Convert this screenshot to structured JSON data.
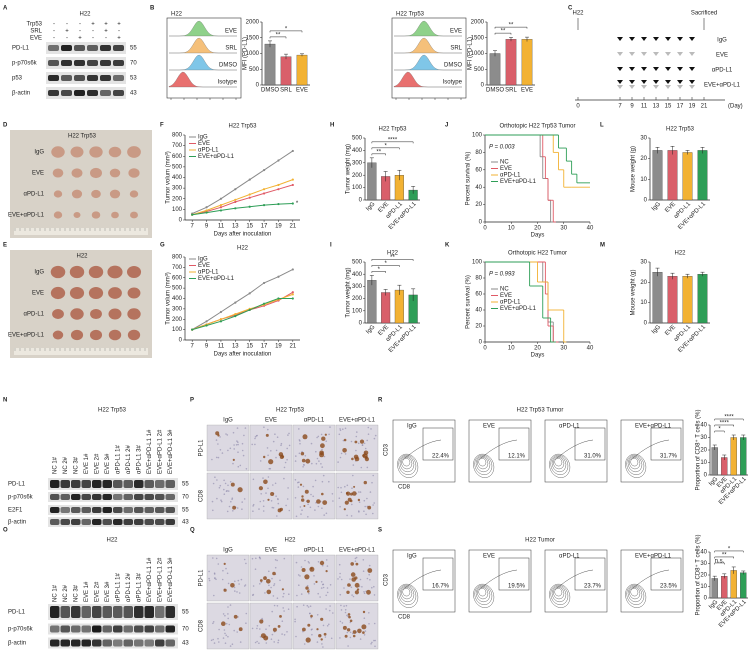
{
  "panel_labels": [
    "A",
    "B",
    "C",
    "D",
    "E",
    "F",
    "G",
    "H",
    "I",
    "J",
    "K",
    "L",
    "M",
    "N",
    "O",
    "P",
    "Q",
    "R",
    "S"
  ],
  "blots": [
    {
      "title": "H22",
      "conditions": [
        {
          "name": "Trp53",
          "signs": [
            "-",
            "-",
            "-",
            "+",
            "+",
            "+"
          ]
        },
        {
          "name": "SRL",
          "signs": [
            "-",
            "+",
            "-",
            "-",
            "+",
            "-"
          ]
        },
        {
          "name": "EVE",
          "signs": [
            "-",
            "-",
            "+",
            "-",
            "-",
            "+"
          ]
        }
      ],
      "bands": [
        {
          "name": "PD-L1",
          "kda": 55
        },
        {
          "name": "p-p70s6k",
          "kda": 70
        },
        {
          "name": "p53",
          "kda": 53
        },
        {
          "name": "β-actin",
          "kda": 43
        }
      ]
    },
    {
      "title": "H22 Trp53",
      "lanes": [
        "NC 1#",
        "NC 2#",
        "NC 3#",
        "EVE 1#",
        "EVE 2#",
        "EVE 3#",
        "αPD-L1 1#",
        "αPD-L1 2#",
        "αPD-L1 3#",
        "EVE+αPD-L1 1#",
        "EVE+αPD-L1 2#",
        "EVE+αPD-L1 3#"
      ],
      "bands": [
        {
          "name": "PD-L1",
          "kda": 55
        },
        {
          "name": "p-p70s6k",
          "kda": 70
        },
        {
          "name": "E2F1",
          "kda": 55
        },
        {
          "name": "β-actin",
          "kda": 43
        }
      ]
    },
    {
      "title": "H22",
      "lanes": [
        "NC 1#",
        "NC 2#",
        "NC 3#",
        "EVE 1#",
        "EVE 2#",
        "EVE 3#",
        "αPD-L1 1#",
        "αPD-L1 2#",
        "αPD-L1 3#",
        "EVE+αPD-L1 1#",
        "EVE+αPD-L1 2#",
        "EVE+αPD-L1 3#"
      ],
      "bands": [
        {
          "name": "PD-L1",
          "kda": 55
        },
        {
          "name": "p-p70s6k",
          "kda": 70
        },
        {
          "name": "β-actin",
          "kda": 43
        }
      ]
    }
  ],
  "flow_histograms": [
    {
      "title": "H22",
      "labels": [
        "EVE",
        "SRL",
        "DMSO",
        "Isotype"
      ],
      "colors": [
        "#8fd18a",
        "#f5c07a",
        "#7fc6e8",
        "#e8706f"
      ]
    },
    {
      "title": "H22 Trp53",
      "labels": [
        "EVE",
        "SRL",
        "DMSO",
        "Isotype"
      ],
      "colors": [
        "#8fd18a",
        "#f5c07a",
        "#7fc6e8",
        "#e8706f"
      ]
    }
  ],
  "schedule": {
    "start_label": "H22",
    "end_label": "Sacrificed",
    "groups": [
      "IgG",
      "EVE",
      "αPD-L1",
      "EVE+αPD-L1"
    ],
    "days": [
      0,
      7,
      9,
      11,
      13,
      15,
      17,
      19,
      21
    ],
    "unit": "(Day)"
  },
  "photos": [
    {
      "title": "H22 Trp53",
      "groups": [
        "IgG",
        "EVE",
        "αPD-L1",
        "EVE+αPD-L1"
      ]
    },
    {
      "title": "H22",
      "groups": [
        "IgG",
        "EVE",
        "αPD-L1",
        "EVE+αPD-L1"
      ]
    }
  ],
  "ihc": [
    {
      "title": "H22 Trp53",
      "columns": [
        "IgG",
        "EVE",
        "αPD-L1",
        "EVE+αPD-L1"
      ],
      "rows": [
        "PD-L1",
        "CD8"
      ]
    },
    {
      "title": "H22",
      "columns": [
        "IgG",
        "EVE",
        "αPD-L1",
        "EVE+αPD-L1"
      ],
      "rows": [
        "PD-L1",
        "CD8"
      ]
    }
  ],
  "flow_plots": [
    {
      "title": "H22 Trp53 Tumor",
      "groups": [
        "IgG",
        "EVE",
        "αPD-L1",
        "EVE+αPD-L1"
      ],
      "gates": [
        "22.4%",
        "12.1%",
        "31.0%",
        "31.7%"
      ],
      "y_axis": "CD3",
      "x_axis": "CD8"
    },
    {
      "title": "H22 Tumor",
      "groups": [
        "IgG",
        "EVE",
        "αPD-L1",
        "EVE+αPD-L1"
      ],
      "gates": [
        "16.7%",
        "19.5%",
        "23.7%",
        "23.5%"
      ],
      "y_axis": "CD3",
      "x_axis": "CD8"
    }
  ],
  "chart_data": [
    {
      "type": "bar",
      "ylabel": "MFI (PD-L1)",
      "categories": [
        "DMSO",
        "SRL",
        "EVE"
      ],
      "values": [
        1300,
        900,
        950
      ],
      "errors": [
        100,
        80,
        40
      ],
      "colors": [
        "#8c8c8c",
        "#d95f6a",
        "#f2b233"
      ],
      "ylim": [
        0,
        2000
      ],
      "yticks": [
        0,
        500,
        1000,
        1500,
        2000
      ],
      "sig": [
        "**",
        "*"
      ]
    },
    {
      "type": "bar",
      "ylabel": "MFI (PD-L1)",
      "categories": [
        "DMSO",
        "SRL",
        "EVE"
      ],
      "values": [
        1000,
        1450,
        1450
      ],
      "errors": [
        90,
        60,
        70
      ],
      "colors": [
        "#8c8c8c",
        "#d95f6a",
        "#f2b233"
      ],
      "ylim": [
        0,
        2000
      ],
      "yticks": [
        0,
        500,
        1000,
        1500,
        2000
      ],
      "sig": [
        "**",
        "**"
      ]
    },
    {
      "type": "line",
      "title": "H22 Trp53",
      "ylabel": "Tumor volum (mm³)",
      "xlabel": "Days after inoculation",
      "x": [
        7,
        9,
        11,
        13,
        15,
        17,
        19,
        21
      ],
      "xlim": [
        6,
        22
      ],
      "xticks": [
        7,
        9,
        11,
        13,
        15,
        17,
        19,
        21
      ],
      "ylim": [
        0,
        800
      ],
      "yticks": [
        0,
        100,
        200,
        300,
        400,
        500,
        600,
        700,
        800
      ],
      "annotation": "*",
      "series": [
        {
          "name": "IgG",
          "color": "#8a8a8a",
          "values": [
            60,
            120,
            200,
            290,
            380,
            470,
            560,
            650
          ]
        },
        {
          "name": "EVE",
          "color": "#e05a66",
          "values": [
            50,
            80,
            120,
            170,
            210,
            250,
            290,
            330
          ]
        },
        {
          "name": "αPD-L1",
          "color": "#f2b233",
          "values": [
            50,
            90,
            140,
            190,
            240,
            290,
            330,
            380
          ]
        },
        {
          "name": "EVE+αPD-L1",
          "color": "#2e9e57",
          "values": [
            50,
            70,
            90,
            110,
            125,
            140,
            150,
            155
          ]
        }
      ]
    },
    {
      "type": "line",
      "title": "H22",
      "ylabel": "Tumor volum (mm³)",
      "xlabel": "Days after inoculation",
      "x": [
        7,
        9,
        11,
        13,
        15,
        17,
        19,
        21
      ],
      "xlim": [
        6,
        22
      ],
      "xticks": [
        7,
        9,
        11,
        13,
        15,
        17,
        19,
        21
      ],
      "ylim": [
        0,
        800
      ],
      "yticks": [
        0,
        100,
        200,
        300,
        400,
        500,
        600,
        700,
        800
      ],
      "series": [
        {
          "name": "IgG",
          "color": "#8a8a8a",
          "values": [
            100,
            180,
            270,
            360,
            450,
            550,
            610,
            680
          ]
        },
        {
          "name": "EVE",
          "color": "#e05a66",
          "values": [
            100,
            150,
            200,
            240,
            290,
            330,
            380,
            460
          ]
        },
        {
          "name": "αPD-L1",
          "color": "#f2b233",
          "values": [
            100,
            150,
            200,
            250,
            300,
            340,
            390,
            440
          ]
        },
        {
          "name": "EVE+αPD-L1",
          "color": "#2e9e57",
          "values": [
            100,
            140,
            180,
            230,
            290,
            350,
            400,
            400
          ]
        }
      ]
    },
    {
      "type": "bar",
      "title": "H22 Trp53",
      "ylabel": "Tumor weight (mg)",
      "categories": [
        "IgG",
        "EVE",
        "αPD-L1",
        "EVE+αPD-L1"
      ],
      "values": [
        300,
        190,
        200,
        80
      ],
      "errors": [
        40,
        40,
        40,
        30
      ],
      "colors": [
        "#8c8c8c",
        "#d95f6a",
        "#f2b233",
        "#2e9e57"
      ],
      "ylim": [
        0,
        500
      ],
      "yticks": [
        0,
        100,
        200,
        300,
        400,
        500
      ],
      "sig": [
        "**",
        "*",
        "****"
      ]
    },
    {
      "type": "bar",
      "title": "H22",
      "ylabel": "Tumor weight (mg)",
      "categories": [
        "IgG",
        "EVE",
        "αPD-L1",
        "EVE+αPD-L1"
      ],
      "values": [
        350,
        250,
        270,
        230
      ],
      "errors": [
        40,
        25,
        40,
        50
      ],
      "colors": [
        "#8c8c8c",
        "#d95f6a",
        "#f2b233",
        "#2e9e57"
      ],
      "ylim": [
        0,
        500
      ],
      "yticks": [
        0,
        100,
        200,
        300,
        400,
        500
      ],
      "sig": [
        "*",
        "*",
        "**"
      ]
    },
    {
      "type": "survival",
      "title": "Orthotopic H22 Trp53 Tumor",
      "ylabel": "Percent survival (%)",
      "xlabel": "Days",
      "annotation": "P = 0.003",
      "xlim": [
        0,
        40
      ],
      "xticks": [
        0,
        10,
        20,
        30,
        40
      ],
      "ylim": [
        0,
        100
      ],
      "yticks": [
        0,
        20,
        40,
        60,
        80,
        100
      ],
      "series": [
        {
          "name": "NC",
          "color": "#8a8a8a",
          "x": [
            0,
            21,
            22,
            24,
            25,
            26
          ],
          "values": [
            100,
            75,
            50,
            25,
            0,
            0
          ]
        },
        {
          "name": "EVE",
          "color": "#e05a66",
          "x": [
            0,
            22,
            23,
            24,
            26,
            27
          ],
          "values": [
            100,
            75,
            50,
            25,
            0,
            0
          ]
        },
        {
          "name": "αPD-L1",
          "color": "#f2b233",
          "x": [
            0,
            26,
            28,
            30,
            33,
            40
          ],
          "values": [
            100,
            80,
            60,
            40,
            40,
            40
          ]
        },
        {
          "name": "EVE+αPD-L1",
          "color": "#2e9e57",
          "x": [
            0,
            28,
            31,
            33,
            35,
            40
          ],
          "values": [
            100,
            85,
            70,
            55,
            45,
            45
          ]
        }
      ]
    },
    {
      "type": "survival",
      "title": "Orthotopic H22 Tumor",
      "ylabel": "Percent survival (%)",
      "xlabel": "Days",
      "annotation": "P = 0.993",
      "xlim": [
        0,
        40
      ],
      "xticks": [
        0,
        10,
        20,
        30,
        40
      ],
      "ylim": [
        0,
        100
      ],
      "yticks": [
        0,
        20,
        40,
        60,
        80,
        100
      ],
      "series": [
        {
          "name": "NC",
          "color": "#8a8a8a",
          "x": [
            0,
            22,
            24,
            26,
            27
          ],
          "values": [
            100,
            75,
            25,
            0,
            0
          ]
        },
        {
          "name": "EVE",
          "color": "#e05a66",
          "x": [
            0,
            23,
            24,
            26,
            28
          ],
          "values": [
            100,
            60,
            20,
            0,
            0
          ]
        },
        {
          "name": "αPD-L1",
          "color": "#f2b233",
          "x": [
            0,
            20,
            24,
            30,
            31
          ],
          "values": [
            100,
            75,
            40,
            0,
            0
          ]
        },
        {
          "name": "EVE+αPD-L1",
          "color": "#2e9e57",
          "x": [
            0,
            17,
            22,
            25,
            27
          ],
          "values": [
            100,
            70,
            30,
            0,
            0
          ]
        }
      ]
    },
    {
      "type": "bar",
      "title": "H22 Trp53",
      "ylabel": "Mouse weight (g)",
      "categories": [
        "IgG",
        "EVE",
        "αPD-L1",
        "EVE+αPD-L1"
      ],
      "values": [
        24,
        24,
        23,
        24
      ],
      "errors": [
        1.5,
        2,
        1,
        1.5
      ],
      "colors": [
        "#8c8c8c",
        "#d95f6a",
        "#f2b233",
        "#2e9e57"
      ],
      "ylim": [
        0,
        30
      ],
      "yticks": [
        0,
        10,
        20,
        30
      ]
    },
    {
      "type": "bar",
      "title": "H22",
      "ylabel": "Mouse weight (g)",
      "categories": [
        "IgG",
        "EVE",
        "αPD-L1",
        "EVE+αPD-L1"
      ],
      "values": [
        25,
        23,
        23,
        24
      ],
      "errors": [
        2,
        1.5,
        1,
        1
      ],
      "colors": [
        "#8c8c8c",
        "#d95f6a",
        "#f2b233",
        "#2e9e57"
      ],
      "ylim": [
        0,
        30
      ],
      "yticks": [
        0,
        10,
        20,
        30
      ]
    },
    {
      "type": "bar",
      "ylabel": "Proportion of CD8⁺ T cells (%)",
      "categories": [
        "IgG",
        "EVE",
        "αPD-L1",
        "EVE+αPD-L1"
      ],
      "values": [
        22,
        14,
        30,
        30
      ],
      "errors": [
        2,
        2,
        2,
        2
      ],
      "colors": [
        "#8c8c8c",
        "#d95f6a",
        "#f2b233",
        "#2e9e57"
      ],
      "ylim": [
        0,
        40
      ],
      "yticks": [
        0,
        10,
        20,
        30,
        40
      ],
      "sig": [
        "*",
        "****",
        "****"
      ]
    },
    {
      "type": "bar",
      "ylabel": "Proportion of CD8⁺ T cells (%)",
      "categories": [
        "IgG",
        "EVE",
        "αPD-L1",
        "EVE+αPD-L1"
      ],
      "values": [
        17,
        19,
        24,
        22
      ],
      "errors": [
        2,
        2,
        3,
        1.5
      ],
      "colors": [
        "#8c8c8c",
        "#d95f6a",
        "#f2b233",
        "#2e9e57"
      ],
      "ylim": [
        0,
        40
      ],
      "yticks": [
        0,
        10,
        20,
        30,
        40
      ],
      "sig": [
        "n.s.",
        "**",
        "*"
      ]
    }
  ]
}
